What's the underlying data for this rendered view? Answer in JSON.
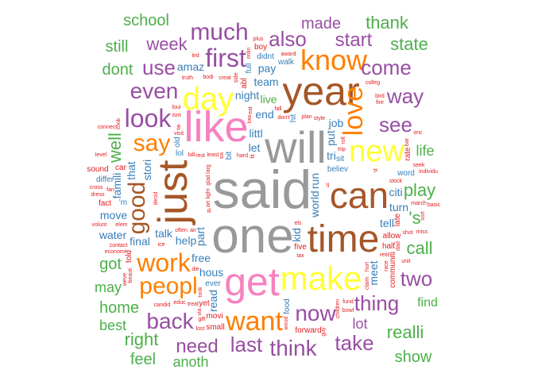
{
  "palette": {
    "gray": "#999999",
    "pink": "#f781bf",
    "yellow": "#ffff33",
    "brown": "#a65628",
    "orange": "#ff7f00",
    "purple": "#984ea3",
    "green": "#4daf4a",
    "blue": "#377eb8",
    "red": "#e41a1c"
  },
  "words": [
    {
      "text": "said",
      "color": "gray"
    },
    {
      "text": "one",
      "color": "gray"
    },
    {
      "text": "will",
      "color": "gray"
    },
    {
      "text": "year",
      "color": "brown"
    },
    {
      "text": "like",
      "color": "pink"
    },
    {
      "text": "just",
      "color": "brown"
    },
    {
      "text": "time",
      "color": "brown"
    },
    {
      "text": "get",
      "color": "pink"
    },
    {
      "text": "make",
      "color": "yellow"
    },
    {
      "text": "can",
      "color": "brown"
    },
    {
      "text": "new",
      "color": "yellow"
    },
    {
      "text": "day",
      "color": "yellow"
    },
    {
      "text": "know",
      "color": "orange"
    },
    {
      "text": "love",
      "color": "orange"
    },
    {
      "text": "work",
      "color": "orange"
    },
    {
      "text": "peopl",
      "color": "orange"
    },
    {
      "text": "want",
      "color": "orange"
    },
    {
      "text": "good",
      "color": "brown"
    },
    {
      "text": "look",
      "color": "purple"
    },
    {
      "text": "first",
      "color": "purple"
    },
    {
      "text": "much",
      "color": "purple"
    },
    {
      "text": "also",
      "color": "purple"
    },
    {
      "text": "even",
      "color": "purple"
    },
    {
      "text": "use",
      "color": "purple"
    },
    {
      "text": "say",
      "color": "orange"
    },
    {
      "text": "back",
      "color": "purple"
    },
    {
      "text": "now",
      "color": "purple"
    },
    {
      "text": "thing",
      "color": "purple"
    },
    {
      "text": "two",
      "color": "purple"
    },
    {
      "text": "think",
      "color": "purple"
    },
    {
      "text": "last",
      "color": "purple"
    },
    {
      "text": "need",
      "color": "purple"
    },
    {
      "text": "take",
      "color": "purple"
    },
    {
      "text": "see",
      "color": "purple"
    },
    {
      "text": "way",
      "color": "purple"
    },
    {
      "text": "come",
      "color": "purple"
    },
    {
      "text": "start",
      "color": "purple"
    },
    {
      "text": "week",
      "color": "purple"
    },
    {
      "text": "made",
      "color": "purple"
    },
    {
      "text": "thank",
      "color": "green"
    },
    {
      "text": "state",
      "color": "green"
    },
    {
      "text": "school",
      "color": "green"
    },
    {
      "text": "still",
      "color": "green"
    },
    {
      "text": "dont",
      "color": "green"
    },
    {
      "text": "well",
      "color": "green"
    },
    {
      "text": "play",
      "color": "green"
    },
    {
      "text": "call",
      "color": "green"
    },
    {
      "text": "'s",
      "color": "green"
    },
    {
      "text": "realli",
      "color": "green"
    },
    {
      "text": "show",
      "color": "green"
    },
    {
      "text": "right",
      "color": "green"
    },
    {
      "text": "feel",
      "color": "green"
    },
    {
      "text": "anoth",
      "color": "green"
    },
    {
      "text": "home",
      "color": "green"
    },
    {
      "text": "best",
      "color": "green"
    },
    {
      "text": "got",
      "color": "green"
    },
    {
      "text": "may",
      "color": "green"
    },
    {
      "text": "life",
      "color": "green"
    },
    {
      "text": "find",
      "color": "green"
    },
    {
      "text": "lot",
      "color": "purple"
    },
    {
      "text": "end",
      "color": "blue"
    },
    {
      "text": "world",
      "color": "blue"
    },
    {
      "text": "night",
      "color": "blue"
    },
    {
      "text": "let",
      "color": "blue"
    },
    {
      "text": "part",
      "color": "blue"
    },
    {
      "text": "littl",
      "color": "blue"
    },
    {
      "text": "tri",
      "color": "blue"
    },
    {
      "text": "put",
      "color": "blue"
    },
    {
      "text": "help",
      "color": "blue"
    },
    {
      "text": "team",
      "color": "blue"
    },
    {
      "text": "run",
      "color": "blue"
    },
    {
      "text": "live",
      "color": "green"
    },
    {
      "text": "hous",
      "color": "blue"
    },
    {
      "text": "read",
      "color": "blue"
    },
    {
      "text": "free",
      "color": "blue"
    },
    {
      "text": "talk",
      "color": "blue"
    },
    {
      "text": "stori",
      "color": "blue"
    },
    {
      "text": "citi",
      "color": "blue"
    },
    {
      "text": "tell",
      "color": "blue"
    },
    {
      "text": "famili",
      "color": "blue"
    },
    {
      "text": "pay",
      "color": "blue"
    },
    {
      "text": "final",
      "color": "blue"
    },
    {
      "text": "meet",
      "color": "blue"
    },
    {
      "text": "turn",
      "color": "blue"
    },
    {
      "text": "water",
      "color": "blue"
    },
    {
      "text": "kid",
      "color": "blue"
    },
    {
      "text": "job",
      "color": "blue"
    },
    {
      "text": "move",
      "color": "blue"
    },
    {
      "text": "that",
      "color": "blue"
    },
    {
      "text": "amaz",
      "color": "blue"
    },
    {
      "text": "ever",
      "color": "blue"
    },
    {
      "text": "hit",
      "color": "blue"
    },
    {
      "text": "believ",
      "color": "blue"
    },
    {
      "text": "five",
      "color": "red"
    },
    {
      "text": "old",
      "color": "blue"
    },
    {
      "text": "lol",
      "color": "blue"
    },
    {
      "text": "sit",
      "color": "blue"
    },
    {
      "text": "bit",
      "color": "blue"
    },
    {
      "text": "word",
      "color": "blue"
    },
    {
      "text": "didnt",
      "color": "blue"
    },
    {
      "text": "food",
      "color": "blue"
    },
    {
      "text": "allow",
      "color": "red"
    },
    {
      "text": "walk",
      "color": "blue"
    },
    {
      "text": "abl",
      "color": "red"
    },
    {
      "text": "'m",
      "color": "blue"
    },
    {
      "text": "differ",
      "color": "blue"
    },
    {
      "text": "full",
      "color": "blue"
    },
    {
      "text": "half",
      "color": "red"
    },
    {
      "text": "movi",
      "color": "red"
    },
    {
      "text": "communiti",
      "color": "red"
    },
    {
      "text": "forward",
      "color": "red"
    },
    {
      "text": "yet",
      "color": "red"
    },
    {
      "text": "late",
      "color": "red"
    },
    {
      "text": "sound",
      "color": "red"
    },
    {
      "text": "car",
      "color": "red"
    },
    {
      "text": "told",
      "color": "red"
    },
    {
      "text": "fact",
      "color": "red"
    },
    {
      "text": "boy",
      "color": "red"
    },
    {
      "text": "rate",
      "color": "red"
    },
    {
      "text": "small",
      "color": "red"
    },
    {
      "text": "least",
      "color": "red"
    },
    {
      "text": "side",
      "color": "red"
    },
    {
      "text": "don't",
      "color": "red"
    },
    {
      "text": "often",
      "color": "red"
    },
    {
      "text": "larg",
      "color": "red"
    },
    {
      "text": "rest",
      "color": "red"
    },
    {
      "text": "fall",
      "color": "red"
    },
    {
      "text": "children",
      "color": "red"
    },
    {
      "text": "hard",
      "color": "red"
    },
    {
      "text": "els",
      "color": "red"
    },
    {
      "text": "low",
      "color": "red"
    },
    {
      "text": "creat",
      "color": "red"
    },
    {
      "text": "isnt",
      "color": "red"
    },
    {
      "text": "light",
      "color": "red"
    },
    {
      "text": "plan",
      "color": "red"
    },
    {
      "text": "bodi",
      "color": "red"
    },
    {
      "text": "fit",
      "color": "red"
    },
    {
      "text": "trip",
      "color": "red"
    },
    {
      "text": "tax",
      "color": "red"
    },
    {
      "text": "decid",
      "color": "red"
    },
    {
      "text": "truth",
      "color": "red"
    },
    {
      "text": "march",
      "color": "red"
    },
    {
      "text": "glad",
      "color": "red"
    },
    {
      "text": "bill",
      "color": "red"
    },
    {
      "text": "air",
      "color": "red"
    },
    {
      "text": "six",
      "color": "red"
    },
    {
      "text": "stock",
      "color": "red"
    },
    {
      "text": "seek",
      "color": "red"
    },
    {
      "text": "wood",
      "color": "red"
    },
    {
      "text": "award",
      "color": "red"
    },
    {
      "text": "shot",
      "color": "red"
    },
    {
      "text": "took",
      "color": "red"
    },
    {
      "text": "ice",
      "color": "red"
    },
    {
      "text": "visit",
      "color": "red"
    },
    {
      "text": "claim",
      "color": "red"
    },
    {
      "text": "style",
      "color": "red"
    },
    {
      "text": "fire",
      "color": "red"
    },
    {
      "text": "beauti",
      "color": "red"
    },
    {
      "text": "fund",
      "color": "red"
    },
    {
      "text": "contact",
      "color": "red"
    },
    {
      "text": "tie",
      "color": "red"
    },
    {
      "text": "economi",
      "color": "red"
    },
    {
      "text": "loui",
      "color": "red"
    },
    {
      "text": "roll",
      "color": "red"
    },
    {
      "text": "fan",
      "color": "red"
    },
    {
      "text": "retir",
      "color": "red"
    },
    {
      "text": "race",
      "color": "red"
    },
    {
      "text": "connect",
      "color": "red"
    },
    {
      "text": "dress",
      "color": "red"
    },
    {
      "text": "eat",
      "color": "red"
    },
    {
      "text": "treat",
      "color": "red"
    },
    {
      "text": "candid",
      "color": "red"
    },
    {
      "text": "via",
      "color": "red"
    },
    {
      "text": "volunt",
      "color": "red"
    },
    {
      "text": "bowl",
      "color": "red"
    },
    {
      "text": "art",
      "color": "red"
    },
    {
      "text": "colleg",
      "color": "red"
    },
    {
      "text": "educ",
      "color": "red"
    },
    {
      "text": "cook",
      "color": "red"
    },
    {
      "text": "led",
      "color": "red"
    },
    {
      "text": "bird",
      "color": "red"
    },
    {
      "text": "weve",
      "color": "red"
    },
    {
      "text": "cross",
      "color": "red"
    },
    {
      "text": "elem",
      "color": "red"
    },
    {
      "text": "onlin",
      "color": "red"
    },
    {
      "text": "individu",
      "color": "red"
    },
    {
      "text": "unit",
      "color": "red"
    },
    {
      "text": "bar",
      "color": "red"
    },
    {
      "text": "die",
      "color": "red"
    },
    {
      "text": "basic",
      "color": "red"
    },
    {
      "text": "hurt",
      "color": "red"
    },
    {
      "text": "miss",
      "color": "red"
    },
    {
      "text": "level",
      "color": "red"
    },
    {
      "text": "sort",
      "color": "red"
    },
    {
      "text": "ill",
      "color": "red"
    },
    {
      "text": "'ll",
      "color": "red"
    },
    {
      "text": "'d",
      "color": "red"
    },
    {
      "text": "gift",
      "color": "red"
    },
    {
      "text": "onc",
      "color": "red"
    },
    {
      "text": "dad",
      "color": "red"
    },
    {
      "text": "lost",
      "color": "red"
    },
    {
      "text": "plus",
      "color": "red"
    },
    {
      "text": "guy",
      "color": "red"
    }
  ]
}
